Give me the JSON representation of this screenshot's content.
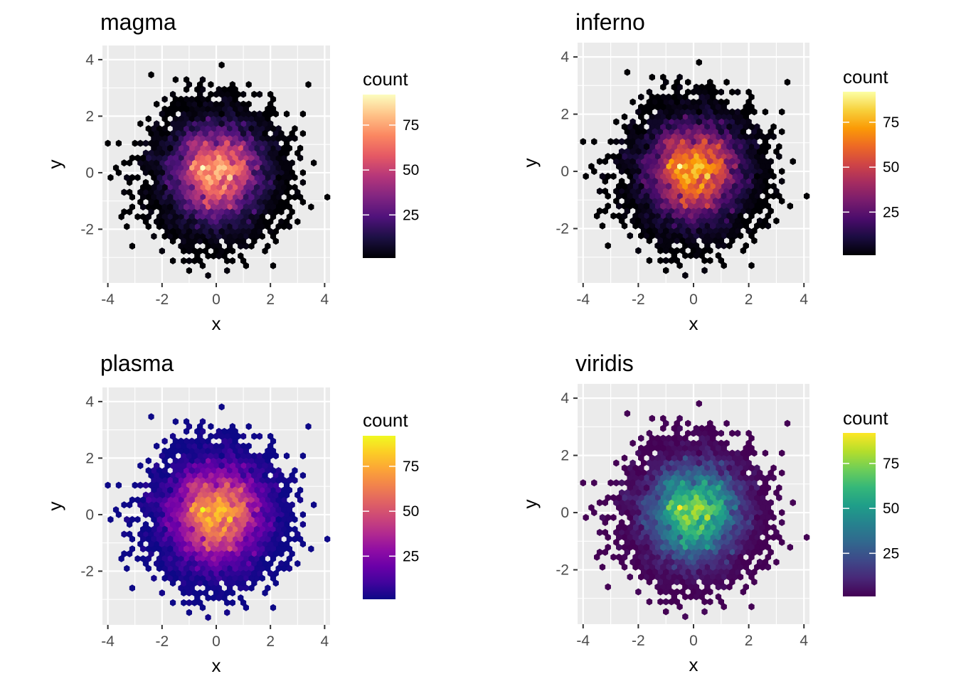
{
  "chart_data": [
    {
      "type": "hexbin",
      "title": "magma",
      "xlabel": "x",
      "ylabel": "y",
      "xlim": [
        -4.2,
        4.2
      ],
      "ylim": [
        -3.9,
        4.5
      ],
      "x_ticks": [
        "-4",
        "-2",
        "0",
        "2",
        "4"
      ],
      "y_ticks": [
        "-2",
        "0",
        "2",
        "4"
      ],
      "legend": {
        "title": "count",
        "ticks": [
          "25",
          "50",
          "75"
        ],
        "min": 1,
        "max": 92,
        "position": "right"
      },
      "colormap": [
        "#000004",
        "#1c1044",
        "#4f127b",
        "#812581",
        "#b5367a",
        "#e55964",
        "#fb8761",
        "#fec287",
        "#fcfdbf"
      ],
      "grid": true,
      "panel_background": "#ebebeb"
    },
    {
      "type": "hexbin",
      "title": "inferno",
      "xlabel": "x",
      "ylabel": "y",
      "xlim": [
        -4.2,
        4.2
      ],
      "ylim": [
        -3.9,
        4.5
      ],
      "x_ticks": [
        "-4",
        "-2",
        "0",
        "2",
        "4"
      ],
      "y_ticks": [
        "-2",
        "0",
        "2",
        "4"
      ],
      "legend": {
        "title": "count",
        "ticks": [
          "25",
          "50",
          "75"
        ],
        "min": 1,
        "max": 92,
        "position": "right"
      },
      "colormap": [
        "#000004",
        "#1b0c41",
        "#4a0c6b",
        "#781c6d",
        "#a52c60",
        "#cf4446",
        "#ed6925",
        "#fb9b06",
        "#f7d13d",
        "#fcffa4"
      ],
      "grid": true,
      "panel_background": "#ebebeb"
    },
    {
      "type": "hexbin",
      "title": "plasma",
      "xlabel": "x",
      "ylabel": "y",
      "xlim": [
        -4.2,
        4.2
      ],
      "ylim": [
        -3.9,
        4.5
      ],
      "x_ticks": [
        "-4",
        "-2",
        "0",
        "2",
        "4"
      ],
      "y_ticks": [
        "-2",
        "0",
        "2",
        "4"
      ],
      "legend": {
        "title": "count",
        "ticks": [
          "25",
          "50",
          "75"
        ],
        "min": 1,
        "max": 92,
        "position": "right"
      },
      "colormap": [
        "#0d0887",
        "#41049d",
        "#6a00a8",
        "#8f0da4",
        "#b12a90",
        "#cc4778",
        "#e16462",
        "#f2844b",
        "#fca636",
        "#fcce25",
        "#f0f921"
      ],
      "grid": true,
      "panel_background": "#ebebeb"
    },
    {
      "type": "hexbin",
      "title": "viridis",
      "xlabel": "x",
      "ylabel": "y",
      "xlim": [
        -4.2,
        4.2
      ],
      "ylim": [
        -3.9,
        4.5
      ],
      "x_ticks": [
        "-4",
        "-2",
        "0",
        "2",
        "4"
      ],
      "y_ticks": [
        "-2",
        "0",
        "2",
        "4"
      ],
      "legend": {
        "title": "count",
        "ticks": [
          "25",
          "50",
          "75"
        ],
        "min": 1,
        "max": 92,
        "position": "right"
      },
      "colormap": [
        "#440154",
        "#482878",
        "#3e4989",
        "#31688e",
        "#26828e",
        "#1f9e89",
        "#35b779",
        "#6ece58",
        "#b5de2b",
        "#fde725"
      ],
      "grid": true,
      "panel_background": "#ebebeb"
    }
  ]
}
